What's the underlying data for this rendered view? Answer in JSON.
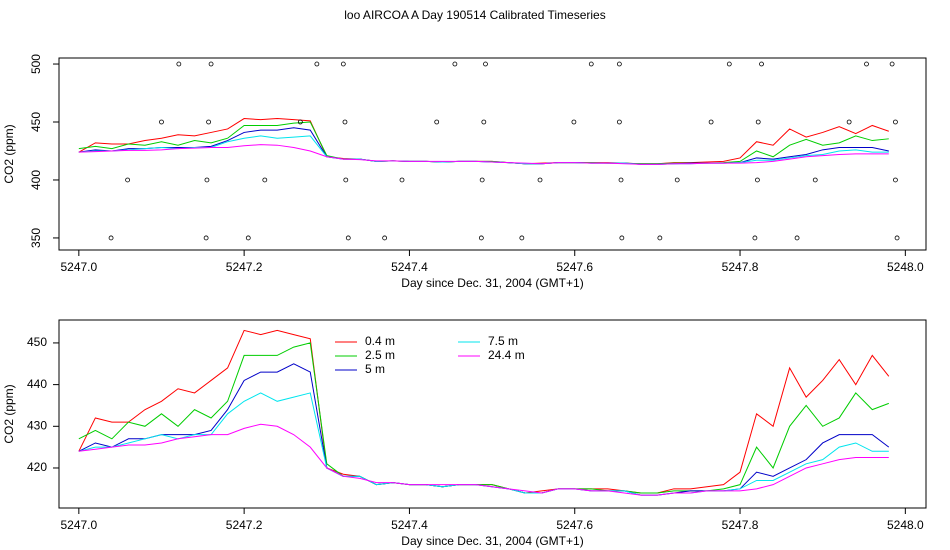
{
  "chart_data": [
    {
      "type": "line",
      "title": "loo AIRCOA A  Day 190514  Calibrated Timeseries",
      "x_label": "Day since Dec. 31, 2004 (GMT+1)",
      "y_label": "CO2 (ppm)",
      "xlim": [
        5246.976,
        5248.025
      ],
      "ylim": [
        339.6,
        505.2
      ],
      "xticks": [
        {
          "value": 5247.0,
          "label": "5247.0"
        },
        {
          "value": 5247.2,
          "label": "5247.2"
        },
        {
          "value": 5247.4,
          "label": "5247.4"
        },
        {
          "value": 5247.6,
          "label": "5247.6"
        },
        {
          "value": 5247.8,
          "label": "5247.8"
        },
        {
          "value": 5248.0,
          "label": "5248.0"
        }
      ],
      "yticks": [
        350,
        400,
        450,
        500
      ],
      "x": [
        5247.0,
        5247.02,
        5247.04,
        5247.06,
        5247.08,
        5247.1,
        5247.12,
        5247.14,
        5247.16,
        5247.18,
        5247.2,
        5247.22,
        5247.24,
        5247.26,
        5247.28,
        5247.3,
        5247.32,
        5247.34,
        5247.36,
        5247.38,
        5247.4,
        5247.42,
        5247.44,
        5247.46,
        5247.48,
        5247.5,
        5247.52,
        5247.54,
        5247.56,
        5247.58,
        5247.6,
        5247.62,
        5247.64,
        5247.66,
        5247.68,
        5247.7,
        5247.72,
        5247.74,
        5247.76,
        5247.78,
        5247.8,
        5247.82,
        5247.84,
        5247.86,
        5247.88,
        5247.9,
        5247.92,
        5247.94,
        5247.96,
        5247.98
      ],
      "series": [
        {
          "color": "#ff0000",
          "values": [
            424,
            432,
            431,
            431,
            434,
            436,
            439,
            438,
            441,
            444,
            453,
            452,
            453,
            452,
            451,
            420,
            418.5,
            418,
            416,
            416.5,
            416,
            416,
            415.5,
            416,
            416,
            416,
            415,
            414,
            414.5,
            415,
            415,
            415,
            415,
            414.5,
            414,
            414,
            415,
            415,
            415.5,
            416,
            419,
            433,
            430,
            444,
            437,
            441,
            446,
            440,
            447,
            442
          ]
        },
        {
          "color": "#00cd00",
          "values": [
            427,
            429,
            427,
            431,
            430,
            433,
            430,
            434,
            432,
            436,
            447,
            447,
            447,
            449,
            450,
            421,
            418,
            418,
            416,
            416.5,
            416,
            416,
            415.5,
            416,
            416,
            416,
            415,
            414,
            414,
            415,
            415,
            415,
            414.5,
            414.5,
            414,
            414,
            414.5,
            414.5,
            414.5,
            415,
            416,
            425,
            420,
            430,
            435,
            430,
            432,
            438,
            434,
            435.5
          ]
        },
        {
          "color": "#0000c8",
          "values": [
            424,
            426,
            425,
            427,
            427,
            428,
            428,
            428,
            429,
            434,
            441,
            443,
            443,
            445,
            443,
            420,
            418,
            418,
            416,
            416.5,
            416,
            416,
            415.5,
            416,
            416,
            415.5,
            415,
            414,
            414,
            415,
            415,
            414.5,
            414.5,
            414.5,
            413.5,
            413.5,
            414,
            414.5,
            414.5,
            414.5,
            415,
            419,
            418,
            420,
            422,
            426,
            428,
            428,
            428,
            425
          ]
        },
        {
          "color": "#00e5ee",
          "values": [
            424,
            425,
            425,
            426,
            427,
            428,
            427,
            428,
            428,
            433,
            436,
            438,
            436,
            437,
            438,
            420,
            418,
            418,
            416,
            416.5,
            416,
            416,
            415.5,
            416,
            416,
            415.5,
            415,
            414,
            414,
            415,
            415,
            414.5,
            414.5,
            414.5,
            413.5,
            413.5,
            414,
            414,
            414.5,
            414.5,
            415,
            417,
            417,
            419,
            421,
            422,
            425,
            426,
            424,
            424
          ]
        },
        {
          "color": "#ff00ff",
          "values": [
            424,
            424.5,
            425,
            425.5,
            425.5,
            426,
            427,
            427.5,
            428,
            428,
            429.5,
            430.5,
            430,
            428,
            425,
            420,
            418,
            417.5,
            416.5,
            416.5,
            416,
            416,
            416,
            416,
            416,
            415.5,
            415,
            414.5,
            414,
            415,
            415,
            414.5,
            414.5,
            414,
            413.5,
            413.5,
            414,
            414,
            414.5,
            414.5,
            414.5,
            415,
            416,
            418,
            420,
            421,
            422,
            422.5,
            422.5,
            422.5
          ]
        }
      ],
      "points": {
        "x": [
          5247.121,
          5247.16,
          5247.288,
          5247.32,
          5247.455,
          5247.492,
          5247.62,
          5247.654,
          5247.787,
          5247.826,
          5247.953,
          5247.984,
          5247.1,
          5247.157,
          5247.268,
          5247.322,
          5247.433,
          5247.49,
          5247.599,
          5247.654,
          5247.765,
          5247.822,
          5247.932,
          5247.988,
          5247.059,
          5247.155,
          5247.225,
          5247.323,
          5247.391,
          5247.488,
          5247.558,
          5247.656,
          5247.724,
          5247.821,
          5247.891,
          5247.988,
          5247.039,
          5247.154,
          5247.205,
          5247.326,
          5247.37,
          5247.487,
          5247.536,
          5247.657,
          5247.703,
          5247.818,
          5247.869,
          5247.99
        ],
        "y": [
          500,
          500,
          500,
          500,
          500,
          500,
          500,
          500,
          500,
          500,
          500,
          500,
          450,
          450,
          450,
          450,
          450,
          450,
          450,
          450,
          450,
          450,
          450,
          450,
          400,
          400,
          400,
          400,
          400,
          400,
          400,
          400,
          400,
          400,
          400,
          400,
          350,
          350,
          350,
          350,
          350,
          350,
          350,
          350,
          350,
          350,
          350,
          350
        ]
      }
    },
    {
      "type": "line",
      "x_label": "Day since Dec. 31, 2004 (GMT+1)",
      "y_label": "CO2 (ppm)",
      "xlim": [
        5246.976,
        5248.025
      ],
      "ylim": [
        410.4,
        455.5
      ],
      "xticks": [
        {
          "value": 5247.0,
          "label": "5247.0"
        },
        {
          "value": 5247.2,
          "label": "5247.2"
        },
        {
          "value": 5247.4,
          "label": "5247.4"
        },
        {
          "value": 5247.6,
          "label": "5247.6"
        },
        {
          "value": 5247.8,
          "label": "5247.8"
        },
        {
          "value": 5248.0,
          "label": "5248.0"
        }
      ],
      "yticks": [
        420,
        430,
        440,
        450
      ],
      "legend": "top",
      "x": [
        5247.0,
        5247.02,
        5247.04,
        5247.06,
        5247.08,
        5247.1,
        5247.12,
        5247.14,
        5247.16,
        5247.18,
        5247.2,
        5247.22,
        5247.24,
        5247.26,
        5247.28,
        5247.3,
        5247.32,
        5247.34,
        5247.36,
        5247.38,
        5247.4,
        5247.42,
        5247.44,
        5247.46,
        5247.48,
        5247.5,
        5247.52,
        5247.54,
        5247.56,
        5247.58,
        5247.6,
        5247.62,
        5247.64,
        5247.66,
        5247.68,
        5247.7,
        5247.72,
        5247.74,
        5247.76,
        5247.78,
        5247.8,
        5247.82,
        5247.84,
        5247.86,
        5247.88,
        5247.9,
        5247.92,
        5247.94,
        5247.96,
        5247.98
      ],
      "series": [
        {
          "name": "0.4 m",
          "color": "#ff0000",
          "values": [
            424,
            432,
            431,
            431,
            434,
            436,
            439,
            438,
            441,
            444,
            453,
            452,
            453,
            452,
            451,
            420,
            418.5,
            418,
            416,
            416.5,
            416,
            416,
            415.5,
            416,
            416,
            416,
            415,
            414,
            414.5,
            415,
            415,
            415,
            415,
            414.5,
            414,
            414,
            415,
            415,
            415.5,
            416,
            419,
            433,
            430,
            444,
            437,
            441,
            446,
            440,
            447,
            442
          ]
        },
        {
          "name": "2.5 m",
          "color": "#00cd00",
          "values": [
            427,
            429,
            427,
            431,
            430,
            433,
            430,
            434,
            432,
            436,
            447,
            447,
            447,
            449,
            450,
            421,
            418,
            418,
            416,
            416.5,
            416,
            416,
            415.5,
            416,
            416,
            416,
            415,
            414,
            414,
            415,
            415,
            415,
            414.5,
            414.5,
            414,
            414,
            414.5,
            414.5,
            414.5,
            415,
            416,
            425,
            420,
            430,
            435,
            430,
            432,
            438,
            434,
            435.5
          ]
        },
        {
          "name": "5 m",
          "color": "#0000c8",
          "values": [
            424,
            426,
            425,
            427,
            427,
            428,
            428,
            428,
            429,
            434,
            441,
            443,
            443,
            445,
            443,
            420,
            418,
            418,
            416,
            416.5,
            416,
            416,
            415.5,
            416,
            416,
            415.5,
            415,
            414,
            414,
            415,
            415,
            414.5,
            414.5,
            414.5,
            413.5,
            413.5,
            414,
            414.5,
            414.5,
            414.5,
            415,
            419,
            418,
            420,
            422,
            426,
            428,
            428,
            428,
            425
          ]
        },
        {
          "name": "7.5 m",
          "color": "#00e5ee",
          "values": [
            424,
            425,
            425,
            426,
            427,
            428,
            427,
            428,
            428,
            433,
            436,
            438,
            436,
            437,
            438,
            420,
            418,
            418,
            416,
            416.5,
            416,
            416,
            415.5,
            416,
            416,
            415.5,
            415,
            414,
            414,
            415,
            415,
            414.5,
            414.5,
            414.5,
            413.5,
            413.5,
            414,
            414,
            414.5,
            414.5,
            415,
            417,
            417,
            419,
            421,
            422,
            425,
            426,
            424,
            424
          ]
        },
        {
          "name": "24.4 m",
          "color": "#ff00ff",
          "values": [
            424,
            424.5,
            425,
            425.5,
            425.5,
            426,
            427,
            427.5,
            428,
            428,
            429.5,
            430.5,
            430,
            428,
            425,
            420,
            418,
            417.5,
            416.5,
            416.5,
            416,
            416,
            416,
            416,
            416,
            415.5,
            415,
            414.5,
            414,
            415,
            415,
            414.5,
            414.5,
            414,
            413.5,
            413.5,
            414,
            414,
            414.5,
            414.5,
            414.5,
            415,
            416,
            418,
            420,
            421,
            422,
            422.5,
            422.5,
            422.5
          ]
        }
      ]
    }
  ]
}
